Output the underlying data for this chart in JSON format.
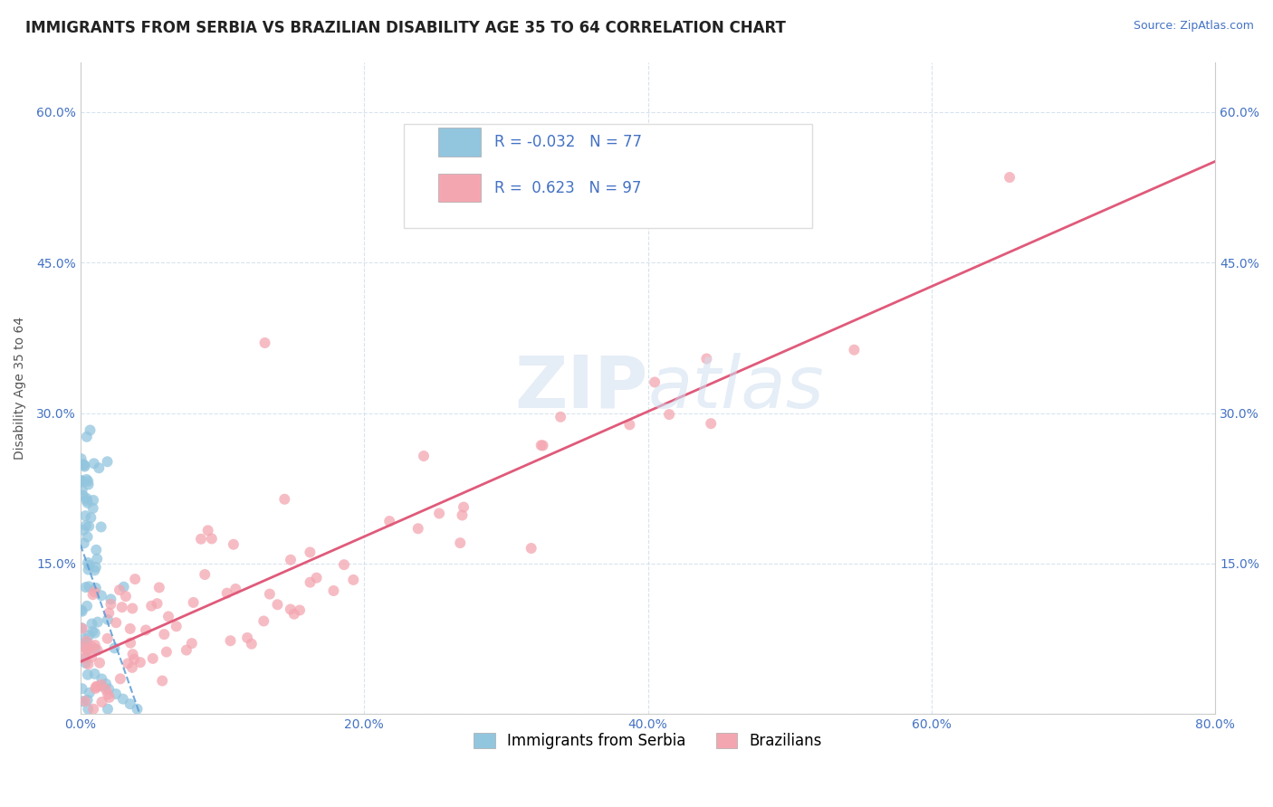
{
  "title": "IMMIGRANTS FROM SERBIA VS BRAZILIAN DISABILITY AGE 35 TO 64 CORRELATION CHART",
  "source": "Source: ZipAtlas.com",
  "ylabel": "Disability Age 35 to 64",
  "xlim": [
    0.0,
    0.8
  ],
  "ylim": [
    0.0,
    0.65
  ],
  "xticks": [
    0.0,
    0.2,
    0.4,
    0.6,
    0.8
  ],
  "xticklabels": [
    "0.0%",
    "20.0%",
    "40.0%",
    "60.0%",
    "80.0%"
  ],
  "yticks": [
    0.0,
    0.15,
    0.3,
    0.45,
    0.6
  ],
  "yticklabels": [
    "",
    "15.0%",
    "30.0%",
    "45.0%",
    "60.0%"
  ],
  "serbia_R": -0.032,
  "serbia_N": 77,
  "brazil_R": 0.623,
  "brazil_N": 97,
  "serbia_color": "#92c5de",
  "brazil_color": "#f4a6b0",
  "serbia_trend_color": "#5b9bd5",
  "brazil_trend_color": "#e05a7a",
  "watermark_zip": "ZIP",
  "watermark_atlas": "atlas",
  "legend_labels": [
    "Immigrants from Serbia",
    "Brazilians"
  ],
  "title_fontsize": 12,
  "axis_label_fontsize": 10,
  "tick_fontsize": 10,
  "legend_fontsize": 12
}
